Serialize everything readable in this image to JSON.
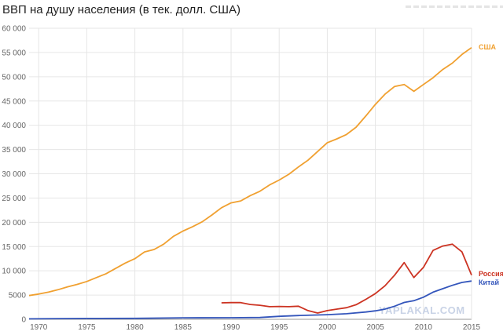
{
  "title": "ВВП на душу населения (в тек. долл. США)",
  "watermark": "YAPLAKAL.COM",
  "colors": {
    "usa": "#f0a030",
    "russia": "#cc3322",
    "china": "#3355bb",
    "grid": "#e6e6e6",
    "watermark": "#c9d3e6"
  },
  "chart_data": {
    "type": "line",
    "title": "ВВП на душу населения (в тек. долл. США)",
    "xlabel": "",
    "ylabel": "",
    "xlim": [
      1969,
      2015
    ],
    "ylim": [
      0,
      60000
    ],
    "grid": true,
    "x_ticks": [
      1970,
      1975,
      1980,
      1985,
      1990,
      1995,
      2000,
      2005,
      2010,
      2015
    ],
    "y_ticks": [
      0,
      5000,
      10000,
      15000,
      20000,
      25000,
      30000,
      35000,
      40000,
      45000,
      50000,
      55000,
      60000
    ],
    "y_tick_labels": [
      "0",
      "5000",
      "10 000",
      "15 000",
      "20 000",
      "25 000",
      "30 000",
      "35 000",
      "40 000",
      "45 000",
      "50 000",
      "55 000",
      "60 000"
    ],
    "series": [
      {
        "name": "США",
        "color": "#f0a030",
        "x": [
          1969,
          1970,
          1971,
          1972,
          1973,
          1974,
          1975,
          1976,
          1977,
          1978,
          1979,
          1980,
          1981,
          1982,
          1983,
          1984,
          1985,
          1986,
          1987,
          1988,
          1989,
          1990,
          1991,
          1992,
          1993,
          1994,
          1995,
          1996,
          1997,
          1998,
          1999,
          2000,
          2001,
          2002,
          2003,
          2004,
          2005,
          2006,
          2007,
          2008,
          2009,
          2010,
          2011,
          2012,
          2013,
          2014,
          2015
        ],
        "values": [
          4900,
          5200,
          5600,
          6100,
          6700,
          7200,
          7800,
          8600,
          9400,
          10500,
          11600,
          12500,
          13900,
          14400,
          15500,
          17100,
          18200,
          19100,
          20100,
          21500,
          23000,
          24000,
          24400,
          25500,
          26400,
          27700,
          28700,
          29900,
          31400,
          32800,
          34600,
          36400,
          37200,
          38100,
          39600,
          41900,
          44300,
          46400,
          48000,
          48400,
          47000,
          48400,
          49800,
          51500,
          52800,
          54600,
          56000
        ]
      },
      {
        "name": "Россия",
        "color": "#cc3322",
        "x": [
          1989,
          1990,
          1991,
          1992,
          1993,
          1994,
          1995,
          1996,
          1997,
          1998,
          1999,
          2000,
          2001,
          2002,
          2003,
          2004,
          2005,
          2006,
          2007,
          2008,
          2009,
          2010,
          2011,
          2012,
          2013,
          2014,
          2015
        ],
        "values": [
          3400,
          3450,
          3450,
          3050,
          2900,
          2600,
          2650,
          2600,
          2700,
          1800,
          1300,
          1800,
          2100,
          2400,
          3000,
          4100,
          5300,
          6900,
          9100,
          11700,
          8600,
          10700,
          14200,
          15100,
          15500,
          13900,
          9100
        ]
      },
      {
        "name": "Китай",
        "color": "#3355bb",
        "x": [
          1969,
          1975,
          1980,
          1985,
          1990,
          1993,
          1995,
          1997,
          2000,
          2002,
          2004,
          2005,
          2006,
          2007,
          2008,
          2009,
          2010,
          2011,
          2012,
          2013,
          2014,
          2015
        ],
        "values": [
          100,
          180,
          200,
          300,
          320,
          380,
          610,
          780,
          950,
          1150,
          1510,
          1750,
          2100,
          2700,
          3470,
          3830,
          4560,
          5600,
          6300,
          7000,
          7600,
          7900
        ]
      }
    ]
  }
}
